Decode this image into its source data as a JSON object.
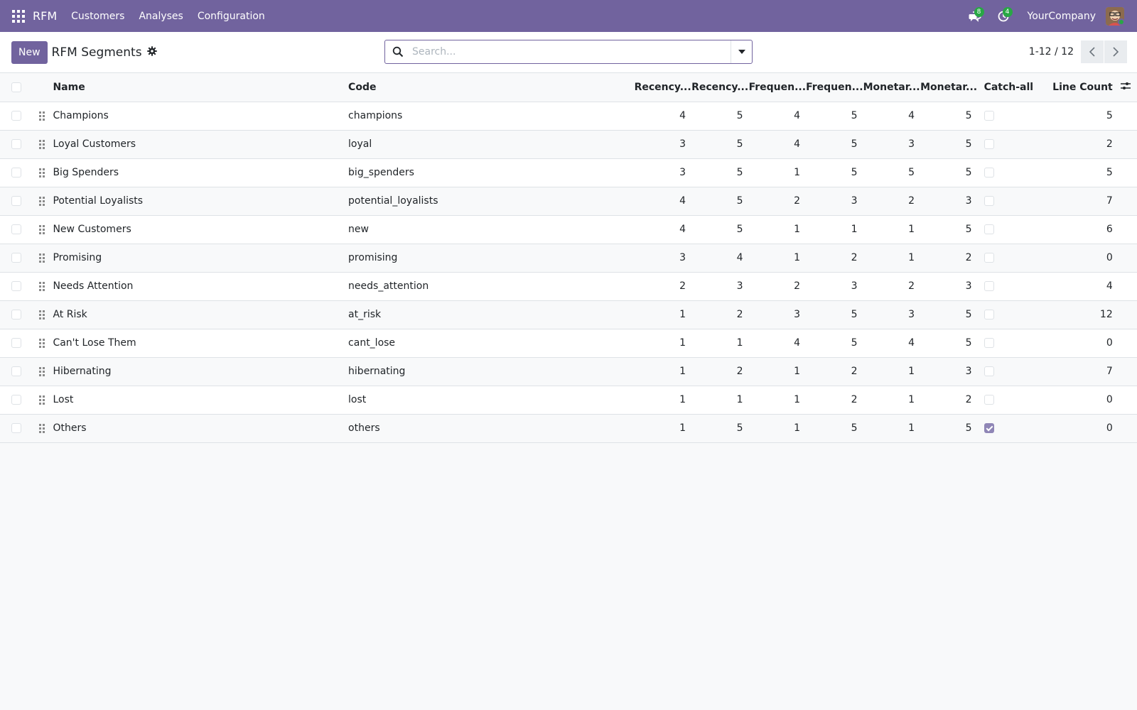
{
  "navbar": {
    "app_name": "RFM",
    "menu": [
      "Customers",
      "Analyses",
      "Configuration"
    ],
    "messages_count": "8",
    "activities_count": "4",
    "company": "YourCompany"
  },
  "control_panel": {
    "new_label": "New",
    "title": "RFM Segments",
    "search_placeholder": "Search...",
    "pager": "1-12 / 12"
  },
  "table": {
    "columns": {
      "name": "Name",
      "code": "Code",
      "r_min": "Recency...",
      "r_max": "Recency...",
      "f_min": "Frequen...",
      "f_max": "Frequen...",
      "m_min": "Monetar...",
      "m_max": "Monetar...",
      "catch_all": "Catch-all",
      "line_count": "Line Count"
    },
    "rows": [
      {
        "name": "Champions",
        "code": "champions",
        "r_min": "4",
        "r_max": "5",
        "f_min": "4",
        "f_max": "5",
        "m_min": "4",
        "m_max": "5",
        "catch_all": false,
        "line_count": "5"
      },
      {
        "name": "Loyal Customers",
        "code": "loyal",
        "r_min": "3",
        "r_max": "5",
        "f_min": "4",
        "f_max": "5",
        "m_min": "3",
        "m_max": "5",
        "catch_all": false,
        "line_count": "2"
      },
      {
        "name": "Big Spenders",
        "code": "big_spenders",
        "r_min": "3",
        "r_max": "5",
        "f_min": "1",
        "f_max": "5",
        "m_min": "5",
        "m_max": "5",
        "catch_all": false,
        "line_count": "5"
      },
      {
        "name": "Potential Loyalists",
        "code": "potential_loyalists",
        "r_min": "4",
        "r_max": "5",
        "f_min": "2",
        "f_max": "3",
        "m_min": "2",
        "m_max": "3",
        "catch_all": false,
        "line_count": "7"
      },
      {
        "name": "New Customers",
        "code": "new",
        "r_min": "4",
        "r_max": "5",
        "f_min": "1",
        "f_max": "1",
        "m_min": "1",
        "m_max": "5",
        "catch_all": false,
        "line_count": "6"
      },
      {
        "name": "Promising",
        "code": "promising",
        "r_min": "3",
        "r_max": "4",
        "f_min": "1",
        "f_max": "2",
        "m_min": "1",
        "m_max": "2",
        "catch_all": false,
        "line_count": "0"
      },
      {
        "name": "Needs Attention",
        "code": "needs_attention",
        "r_min": "2",
        "r_max": "3",
        "f_min": "2",
        "f_max": "3",
        "m_min": "2",
        "m_max": "3",
        "catch_all": false,
        "line_count": "4"
      },
      {
        "name": "At Risk",
        "code": "at_risk",
        "r_min": "1",
        "r_max": "2",
        "f_min": "3",
        "f_max": "5",
        "m_min": "3",
        "m_max": "5",
        "catch_all": false,
        "line_count": "12"
      },
      {
        "name": "Can't Lose Them",
        "code": "cant_lose",
        "r_min": "1",
        "r_max": "1",
        "f_min": "4",
        "f_max": "5",
        "m_min": "4",
        "m_max": "5",
        "catch_all": false,
        "line_count": "0"
      },
      {
        "name": "Hibernating",
        "code": "hibernating",
        "r_min": "1",
        "r_max": "2",
        "f_min": "1",
        "f_max": "2",
        "m_min": "1",
        "m_max": "3",
        "catch_all": false,
        "line_count": "7"
      },
      {
        "name": "Lost",
        "code": "lost",
        "r_min": "1",
        "r_max": "1",
        "f_min": "1",
        "f_max": "2",
        "m_min": "1",
        "m_max": "2",
        "catch_all": false,
        "line_count": "0"
      },
      {
        "name": "Others",
        "code": "others",
        "r_min": "1",
        "r_max": "5",
        "f_min": "1",
        "f_max": "5",
        "m_min": "1",
        "m_max": "5",
        "catch_all": true,
        "line_count": "0"
      }
    ]
  },
  "colors": {
    "brand": "#71639e",
    "badge": "#28a745"
  },
  "icons": [
    "apps-icon",
    "chat-icon",
    "activity-clock-icon",
    "gear-icon",
    "search-icon",
    "caret-down-icon",
    "chevron-left-icon",
    "chevron-right-icon",
    "drag-handle-icon",
    "column-options-icon"
  ]
}
